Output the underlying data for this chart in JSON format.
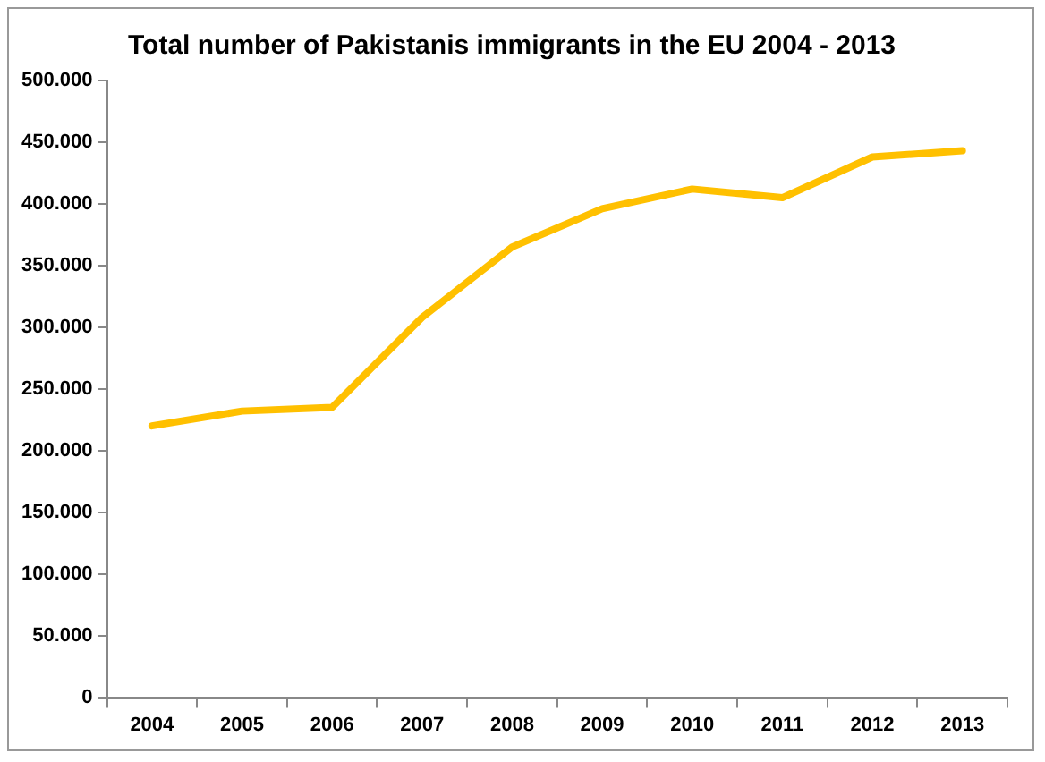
{
  "chart_data": {
    "type": "line",
    "title": "Total number of Pakistanis immigrants in the EU 2004 - 2013",
    "categories": [
      "2004",
      "2005",
      "2006",
      "2007",
      "2008",
      "2009",
      "2010",
      "2011",
      "2012",
      "2013"
    ],
    "series": [
      {
        "color": "#ffc000",
        "values": [
          220000,
          232000,
          235000,
          308000,
          365000,
          396000,
          412000,
          405000,
          438000,
          443000
        ]
      }
    ],
    "ylim": [
      0,
      500000
    ],
    "yticks": [
      0,
      {
        "value": 50000,
        "label": "50.000"
      },
      {
        "value": 100000,
        "label": "100.000"
      },
      {
        "value": 150000,
        "label": "150.000"
      },
      {
        "value": 200000,
        "label": "200.000"
      },
      {
        "value": 250000,
        "label": "250.000"
      },
      {
        "value": 300000,
        "label": "300.000"
      },
      {
        "value": 350000,
        "label": "350.000"
      },
      {
        "value": 400000,
        "label": "400.000"
      },
      {
        "value": 450000,
        "label": "450.000"
      },
      {
        "value": 500000,
        "label": "500.000"
      }
    ],
    "grid": false,
    "legend": false,
    "marker": "none",
    "line_style": "solid"
  }
}
